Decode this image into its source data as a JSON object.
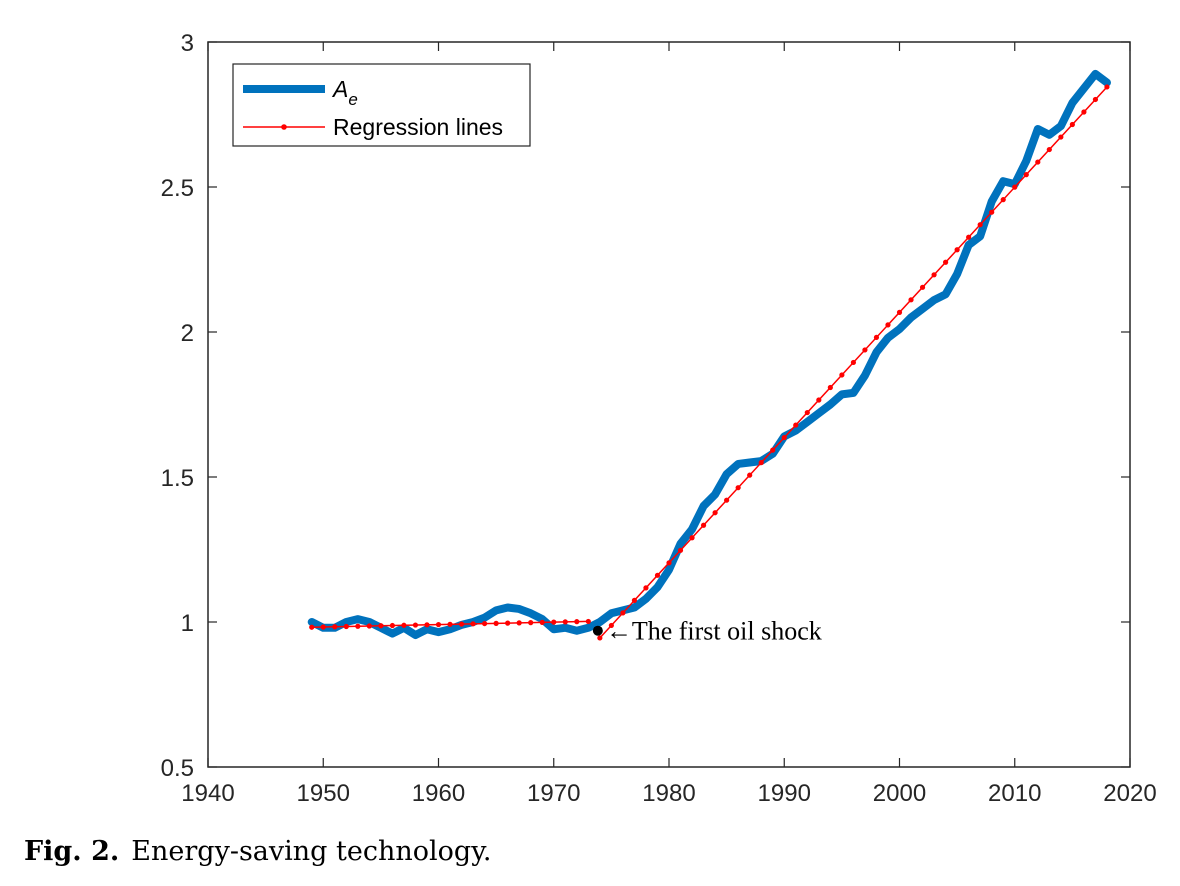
{
  "chart_data": {
    "type": "line",
    "title": "",
    "xlabel": "",
    "ylabel": "",
    "xlim": [
      1940,
      2020
    ],
    "ylim": [
      0.5,
      3
    ],
    "grid": false,
    "legend_placement": "top-left",
    "x_ticks": [
      "1940",
      "1950",
      "1960",
      "1970",
      "1980",
      "1990",
      "2000",
      "2010",
      "2020"
    ],
    "y_ticks": [
      "0.5",
      "1",
      "1.5",
      "2",
      "2.5",
      "3"
    ],
    "x_tick_values": [
      1940,
      1950,
      1960,
      1970,
      1980,
      1990,
      2000,
      2010,
      2020
    ],
    "y_tick_values": [
      0.5,
      1,
      1.5,
      2,
      2.5,
      3
    ],
    "series": [
      {
        "name": "A",
        "name_subscript": "e",
        "color": "#0072BD",
        "x": [
          1949,
          1950,
          1951,
          1952,
          1953,
          1954,
          1955,
          1956,
          1957,
          1958,
          1959,
          1960,
          1961,
          1962,
          1963,
          1964,
          1965,
          1966,
          1967,
          1968,
          1969,
          1970,
          1971,
          1972,
          1973,
          1974,
          1975,
          1976,
          1977,
          1978,
          1979,
          1980,
          1981,
          1982,
          1983,
          1984,
          1985,
          1986,
          1987,
          1988,
          1989,
          1990,
          1991,
          1992,
          1993,
          1994,
          1995,
          1996,
          1997,
          1998,
          1999,
          2000,
          2001,
          2002,
          2003,
          2004,
          2005,
          2006,
          2007,
          2008,
          2009,
          2010,
          2011,
          2012,
          2013,
          2014,
          2015,
          2016,
          2017,
          2018
        ],
        "y": [
          1.0,
          0.98,
          0.98,
          1.0,
          1.01,
          1.0,
          0.98,
          0.96,
          0.98,
          0.955,
          0.975,
          0.965,
          0.975,
          0.99,
          1.0,
          1.015,
          1.04,
          1.05,
          1.045,
          1.03,
          1.01,
          0.975,
          0.98,
          0.97,
          0.98,
          1.0,
          1.03,
          1.04,
          1.05,
          1.08,
          1.12,
          1.18,
          1.27,
          1.32,
          1.4,
          1.44,
          1.51,
          1.545,
          1.55,
          1.555,
          1.58,
          1.64,
          1.66,
          1.69,
          1.72,
          1.75,
          1.785,
          1.79,
          1.85,
          1.93,
          1.98,
          2.01,
          2.05,
          2.08,
          2.11,
          2.13,
          2.2,
          2.3,
          2.33,
          2.45,
          2.52,
          2.51,
          2.59,
          2.7,
          2.68,
          2.71,
          2.79,
          2.84,
          2.89,
          2.86
        ]
      },
      {
        "name": "Regression lines",
        "color": "#FF0000",
        "segments": [
          {
            "x": [
              1949,
              1950,
              1951,
              1952,
              1953,
              1954,
              1955,
              1956,
              1957,
              1958,
              1959,
              1960,
              1961,
              1962,
              1963,
              1964,
              1965,
              1966,
              1967,
              1968,
              1969,
              1970,
              1971,
              1972,
              1973
            ],
            "y_start": 0.982,
            "y_end": 1.002
          },
          {
            "x": [
              1974,
              1975,
              1976,
              1977,
              1978,
              1979,
              1980,
              1981,
              1982,
              1983,
              1984,
              1985,
              1986,
              1987,
              1988,
              1989,
              1990,
              1991,
              1992,
              1993,
              1994,
              1995,
              1996,
              1997,
              1998,
              1999,
              2000,
              2001,
              2002,
              2003,
              2004,
              2005,
              2006,
              2007,
              2008,
              2009,
              2010,
              2011,
              2012,
              2013,
              2014,
              2015,
              2016,
              2017,
              2018
            ],
            "y_start": 0.945,
            "y_end": 2.845
          }
        ]
      }
    ],
    "annotations": [
      {
        "text": "←The first oil shock",
        "x": 1974,
        "y": 0.97,
        "marker_color": "#000000"
      }
    ]
  },
  "caption": {
    "label": "Fig. 2.",
    "text": "Energy-saving technology."
  }
}
